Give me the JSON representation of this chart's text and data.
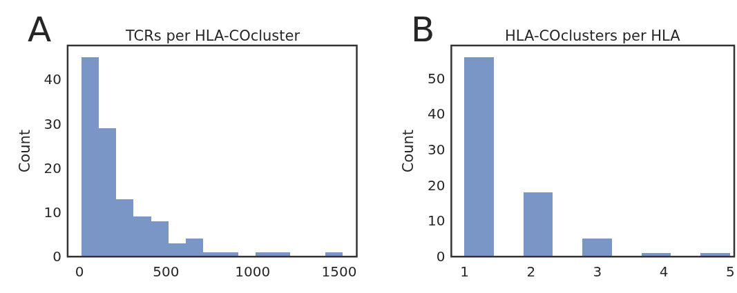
{
  "chart_data": [
    {
      "type": "histogram",
      "title": "TCRs per HLA-COcluster",
      "ylabel": "Count",
      "annotations": [
        "A"
      ],
      "bins": [
        10,
        111,
        211,
        312,
        413,
        513,
        614,
        715,
        815,
        916,
        1017,
        1117,
        1218,
        1319,
        1419,
        1520
      ],
      "values": [
        45,
        29,
        13,
        9,
        8,
        3,
        4,
        1,
        1,
        0,
        1,
        1,
        0,
        0,
        1
      ],
      "color": "#7a96c6",
      "xlim": [
        -69,
        1602
      ],
      "xticks": [
        0,
        500,
        1000,
        1500
      ],
      "ylim": [
        0,
        47.7
      ],
      "yticks": [
        0,
        10,
        20,
        30,
        40
      ],
      "grid": false,
      "legend": false
    },
    {
      "type": "histogram",
      "title": "HLA-COclusters per HLA",
      "ylabel": "Count",
      "annotations": [
        "B"
      ],
      "bins": [
        1,
        1.444,
        1.889,
        2.333,
        2.778,
        3.222,
        3.667,
        4.111,
        4.556,
        5
      ],
      "values": [
        56,
        0,
        18,
        0,
        5,
        0,
        1,
        0,
        1
      ],
      "color": "#7a96c6",
      "xlim": [
        0.8,
        5.06
      ],
      "xticks": [
        1,
        2,
        3,
        4,
        5
      ],
      "ylim": [
        0,
        59.2
      ],
      "yticks": [
        0,
        10,
        20,
        30,
        40,
        50
      ],
      "grid": false,
      "legend": false
    }
  ]
}
